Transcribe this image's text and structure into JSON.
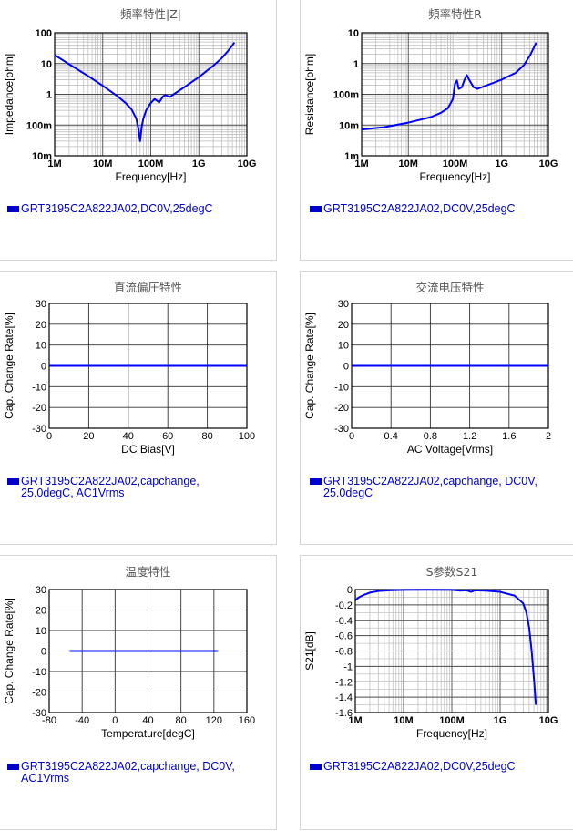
{
  "chart_data": [
    {
      "type": "line",
      "title": "頻率特性|Z|",
      "xlabel": "Frequency[Hz]",
      "ylabel": "Impedance[ohm]",
      "xscale": "log",
      "yscale": "log",
      "xlim": [
        1000000,
        10000000000
      ],
      "ylim": [
        0.01,
        100
      ],
      "xticks": [
        {
          "v": 1000000,
          "label": "1M"
        },
        {
          "v": 10000000,
          "label": "10M"
        },
        {
          "v": 100000000,
          "label": "100M"
        },
        {
          "v": 1000000000,
          "label": "1G"
        },
        {
          "v": 10000000000,
          "label": "10G"
        }
      ],
      "yticks": [
        {
          "v": 0.01,
          "label": "10m"
        },
        {
          "v": 0.1,
          "label": "100m"
        },
        {
          "v": 1,
          "label": "1"
        },
        {
          "v": 10,
          "label": "10"
        },
        {
          "v": 100,
          "label": "100"
        }
      ],
      "grid": true,
      "color": "#0000ff",
      "legend": "GRT3195C2A822JA02,DC0V,25degC",
      "series": [
        {
          "x": [
            1000000,
            2000000,
            5000000,
            10000000,
            20000000,
            30000000,
            40000000,
            50000000,
            55000000,
            60000000,
            65000000,
            70000000,
            80000000,
            100000000,
            120000000,
            150000000,
            180000000,
            200000000,
            250000000,
            300000000,
            500000000,
            1000000000,
            2000000000,
            3000000000,
            4000000000,
            5500000000
          ],
          "y": [
            19,
            9.5,
            3.9,
            1.9,
            0.88,
            0.52,
            0.32,
            0.16,
            0.08,
            0.03,
            0.09,
            0.16,
            0.3,
            0.52,
            0.7,
            0.55,
            0.85,
            0.95,
            0.82,
            1.0,
            1.7,
            3.6,
            8.5,
            15,
            25,
            48
          ]
        }
      ]
    },
    {
      "type": "line",
      "title": "頻率特性R",
      "xlabel": "Frequency[Hz]",
      "ylabel": "Resistance[ohm]",
      "xscale": "log",
      "yscale": "log",
      "xlim": [
        1000000,
        10000000000
      ],
      "ylim": [
        0.001,
        10
      ],
      "xticks": [
        {
          "v": 1000000,
          "label": "1M"
        },
        {
          "v": 10000000,
          "label": "10M"
        },
        {
          "v": 100000000,
          "label": "100M"
        },
        {
          "v": 1000000000,
          "label": "1G"
        },
        {
          "v": 10000000000,
          "label": "10G"
        }
      ],
      "yticks": [
        {
          "v": 0.001,
          "label": "1m"
        },
        {
          "v": 0.01,
          "label": "10m"
        },
        {
          "v": 0.1,
          "label": "100m"
        },
        {
          "v": 1,
          "label": "1"
        },
        {
          "v": 10,
          "label": "10"
        }
      ],
      "grid": true,
      "color": "#0000ff",
      "legend": "GRT3195C2A822JA02,DC0V,25degC",
      "series": [
        {
          "x": [
            1000000,
            3000000,
            10000000,
            30000000,
            50000000,
            70000000,
            90000000,
            100000000,
            110000000,
            120000000,
            140000000,
            160000000,
            180000000,
            200000000,
            250000000,
            300000000,
            500000000,
            1000000000,
            2000000000,
            3000000000,
            4000000000,
            5500000000
          ],
          "y": [
            0.0072,
            0.0085,
            0.012,
            0.018,
            0.025,
            0.035,
            0.07,
            0.22,
            0.28,
            0.15,
            0.17,
            0.3,
            0.42,
            0.3,
            0.17,
            0.15,
            0.2,
            0.3,
            0.5,
            0.9,
            1.8,
            4.8
          ]
        }
      ]
    },
    {
      "type": "line",
      "title": "直流偏圧特性",
      "xlabel": "DC Bias[V]",
      "ylabel": "Cap. Change Rate[%]",
      "xlim": [
        0,
        100
      ],
      "ylim": [
        -30,
        30
      ],
      "xticks": [
        {
          "v": 0,
          "label": "0"
        },
        {
          "v": 20,
          "label": "20"
        },
        {
          "v": 40,
          "label": "40"
        },
        {
          "v": 60,
          "label": "60"
        },
        {
          "v": 80,
          "label": "80"
        },
        {
          "v": 100,
          "label": "100"
        }
      ],
      "yticks": [
        {
          "v": -30,
          "label": "-30"
        },
        {
          "v": -20,
          "label": "-20"
        },
        {
          "v": -10,
          "label": "-10"
        },
        {
          "v": 0,
          "label": "0"
        },
        {
          "v": 10,
          "label": "10"
        },
        {
          "v": 20,
          "label": "20"
        },
        {
          "v": 30,
          "label": "30"
        }
      ],
      "grid": true,
      "color": "#0000ff",
      "legend": "GRT3195C2A822JA02,capchange,\n25.0degC, AC1Vrms",
      "series": [
        {
          "x": [
            0,
            100
          ],
          "y": [
            0,
            0
          ]
        }
      ]
    },
    {
      "type": "line",
      "title": "交流电压特性",
      "xlabel": "AC Voltage[Vrms]",
      "ylabel": "Cap. Change Rate[%]",
      "xlim": [
        0,
        2
      ],
      "ylim": [
        -30,
        30
      ],
      "xticks": [
        {
          "v": 0,
          "label": "0"
        },
        {
          "v": 0.4,
          "label": "0.4"
        },
        {
          "v": 0.8,
          "label": "0.8"
        },
        {
          "v": 1.2,
          "label": "1.2"
        },
        {
          "v": 1.6,
          "label": "1.6"
        },
        {
          "v": 2,
          "label": "2"
        }
      ],
      "yticks": [
        {
          "v": -30,
          "label": "-30"
        },
        {
          "v": -20,
          "label": "-20"
        },
        {
          "v": -10,
          "label": "-10"
        },
        {
          "v": 0,
          "label": "0"
        },
        {
          "v": 10,
          "label": "10"
        },
        {
          "v": 20,
          "label": "20"
        },
        {
          "v": 30,
          "label": "30"
        }
      ],
      "grid": true,
      "color": "#0000ff",
      "legend": "GRT3195C2A822JA02,capchange, DC0V,\n25.0degC",
      "series": [
        {
          "x": [
            0,
            2
          ],
          "y": [
            0,
            0
          ]
        }
      ]
    },
    {
      "type": "line",
      "title": "温度特性",
      "xlabel": "Temperature[degC]",
      "ylabel": "Cap. Change Rate[%]",
      "xlim": [
        -80,
        160
      ],
      "ylim": [
        -30,
        30
      ],
      "xticks": [
        {
          "v": -80,
          "label": "-80"
        },
        {
          "v": -40,
          "label": "-40"
        },
        {
          "v": 0,
          "label": "0"
        },
        {
          "v": 40,
          "label": "40"
        },
        {
          "v": 80,
          "label": "80"
        },
        {
          "v": 120,
          "label": "120"
        },
        {
          "v": 160,
          "label": "160"
        }
      ],
      "yticks": [
        {
          "v": -30,
          "label": "-30"
        },
        {
          "v": -20,
          "label": "-20"
        },
        {
          "v": -10,
          "label": "-10"
        },
        {
          "v": 0,
          "label": "0"
        },
        {
          "v": 10,
          "label": "10"
        },
        {
          "v": 20,
          "label": "20"
        },
        {
          "v": 30,
          "label": "30"
        }
      ],
      "grid": true,
      "color": "#0000ff",
      "legend": "GRT3195C2A822JA02,capchange, DC0V,\nAC1Vrms",
      "series": [
        {
          "x": [
            -55,
            125
          ],
          "y": [
            0,
            0
          ]
        }
      ]
    },
    {
      "type": "line",
      "title": "S参数S21",
      "xlabel": "Frequency[Hz]",
      "ylabel": "S21[dB]",
      "xscale": "log",
      "xlim": [
        1000000,
        10000000000
      ],
      "ylim": [
        -1.6,
        0
      ],
      "xticks": [
        {
          "v": 1000000,
          "label": "1M"
        },
        {
          "v": 10000000,
          "label": "10M"
        },
        {
          "v": 100000000,
          "label": "100M"
        },
        {
          "v": 1000000000,
          "label": "1G"
        },
        {
          "v": 10000000000,
          "label": "10G"
        }
      ],
      "yticks": [
        {
          "v": 0,
          "label": "0"
        },
        {
          "v": -0.2,
          "label": "-0.2"
        },
        {
          "v": -0.4,
          "label": "-0.4"
        },
        {
          "v": -0.6,
          "label": "-0.6"
        },
        {
          "v": -0.8,
          "label": "-0.8"
        },
        {
          "v": -1,
          "label": "-1"
        },
        {
          "v": -1.2,
          "label": "-1.2"
        },
        {
          "v": -1.4,
          "label": "-1.4"
        },
        {
          "v": -1.6,
          "label": "-1.6"
        }
      ],
      "grid": true,
      "color": "#0000ff",
      "legend": "GRT3195C2A822JA02,DC0V,25degC",
      "series": [
        {
          "x": [
            1000000,
            1200000,
            1500000,
            2000000,
            3000000,
            5000000,
            10000000,
            30000000,
            100000000,
            150000000,
            200000000,
            250000000,
            300000000,
            500000000,
            1000000000,
            2000000000,
            3000000000,
            3500000000,
            4000000000,
            4500000000,
            5000000000,
            5500000000
          ],
          "y": [
            -0.14,
            -0.1,
            -0.07,
            -0.04,
            -0.02,
            -0.01,
            -0.005,
            -0.003,
            -0.005,
            -0.015,
            -0.01,
            -0.03,
            -0.01,
            -0.015,
            -0.03,
            -0.08,
            -0.18,
            -0.3,
            -0.5,
            -0.8,
            -1.15,
            -1.5
          ]
        }
      ]
    }
  ]
}
